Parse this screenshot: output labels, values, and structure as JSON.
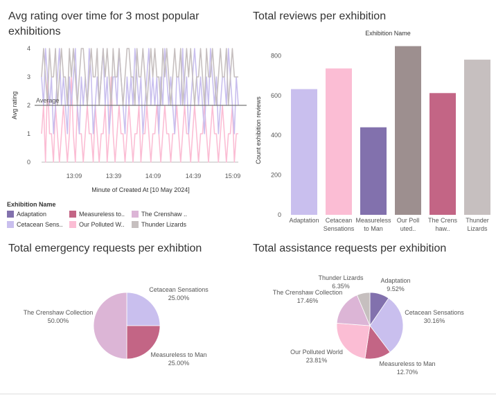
{
  "colors": {
    "Adaptation": "#c9bfee",
    "Cetacean Sensations": "#fbbdd4",
    "Measureless to Man": "#8271ad",
    "Our Polluted World": "#9d8f8f",
    "The Crenshaw Collection": "#c36585",
    "Thunder Lizards": "#c6bfbf",
    "pie_Adaptation": "#8271ad",
    "pie_Cetacean Sensations": "#c9bfee",
    "pie_Measureless to Man": "#c36585",
    "pie_Our Polluted World": "#fbbdd4",
    "pie_The Crenshaw Collection": "#dcb5d6",
    "pie_Thunder Lizards": "#c6bfbf"
  },
  "legend": {
    "title": "Exhibition Name",
    "items": [
      {
        "label": "Adaptation",
        "color": "#8271ad"
      },
      {
        "label": "Measureless to..",
        "color": "#c36585"
      },
      {
        "label": "The Crenshaw ..",
        "color": "#dcb5d6"
      },
      {
        "label": "Cetacean Sens..",
        "color": "#c9bfee"
      },
      {
        "label": "Our Polluted W..",
        "color": "#fbbdd4"
      },
      {
        "label": "Thunder Lizards",
        "color": "#c6bfbf"
      }
    ]
  },
  "chart_data": [
    {
      "id": "line",
      "type": "line",
      "title": "Avg rating over time for 3 most popular exhibitions",
      "xlabel": "Minute of Created At [10 May 2024]",
      "ylabel": "Avg rating",
      "ylim": [
        0,
        4
      ],
      "yticks": [
        "0",
        "1",
        "2",
        "3",
        "4"
      ],
      "xticks": [
        "13:09",
        "13:39",
        "14:09",
        "14:39",
        "15:09"
      ],
      "reference_line": {
        "label": "Average",
        "value": 2
      },
      "series": [
        {
          "name": "Cetacean Sensations",
          "color": "#fbbdd4",
          "values": [
            1,
            2,
            0,
            3,
            1,
            1,
            0,
            2,
            1,
            0,
            1,
            2,
            1,
            0,
            1,
            3,
            1,
            0,
            2,
            1,
            1,
            0,
            1,
            2,
            1,
            1,
            0,
            2,
            1,
            0,
            1,
            1,
            2,
            0,
            1,
            3,
            1,
            0,
            1,
            2,
            1,
            1,
            0,
            1,
            2,
            1,
            0,
            1,
            1,
            2,
            0,
            1,
            1,
            2,
            1,
            0,
            1,
            1,
            2,
            1,
            0,
            1,
            2,
            1,
            1,
            0,
            1,
            1,
            2,
            1,
            0,
            1,
            2,
            1,
            1,
            0,
            1,
            2,
            1,
            0,
            1,
            1,
            2,
            1,
            0,
            1,
            2,
            1,
            1,
            0,
            1,
            2,
            1,
            0,
            1,
            1,
            2,
            0,
            1,
            1
          ]
        },
        {
          "name": "Adaptation",
          "color": "#c9bfee",
          "values": [
            3,
            2,
            4,
            3,
            2,
            3,
            1,
            2,
            3,
            4,
            2,
            3,
            2,
            1,
            3,
            2,
            3,
            4,
            2,
            1,
            3,
            2,
            3,
            2,
            4,
            3,
            1,
            2,
            3,
            2,
            3,
            4,
            2,
            3,
            1,
            2,
            3,
            3,
            2,
            4,
            3,
            2,
            1,
            3,
            2,
            3,
            2,
            4,
            3,
            2,
            3,
            1,
            2,
            3,
            4,
            2,
            3,
            2,
            3,
            1,
            3,
            2,
            4,
            3,
            2,
            3,
            2,
            1,
            3,
            3,
            2,
            4,
            2,
            3,
            1,
            2,
            3,
            4,
            3,
            2,
            3,
            2,
            1,
            3,
            2,
            4,
            3,
            2,
            3,
            1,
            2,
            3,
            3,
            2,
            4,
            3,
            2,
            1,
            3,
            2
          ]
        },
        {
          "name": "Thunder Lizards",
          "color": "#c6bfbf",
          "values": [
            3,
            4,
            3,
            2,
            4,
            3,
            3,
            4,
            2,
            3,
            4,
            3,
            3,
            2,
            4,
            3,
            4,
            3,
            2,
            3,
            4,
            4,
            3,
            2,
            3,
            4,
            3,
            3,
            4,
            2,
            3,
            4,
            3,
            4,
            3,
            2,
            4,
            3,
            3,
            4,
            3,
            2,
            3,
            4,
            4,
            3,
            3,
            2,
            4,
            3,
            3,
            4,
            3,
            2,
            3,
            4,
            3,
            4,
            3,
            3,
            2,
            4,
            3,
            4,
            3,
            2,
            3,
            4,
            3,
            3,
            4,
            2,
            3,
            4,
            3,
            4,
            3,
            2,
            3,
            3,
            4,
            3,
            2,
            4,
            3,
            3,
            4,
            3,
            2,
            3,
            4,
            3,
            3,
            4,
            2,
            3,
            4,
            3,
            3,
            3
          ]
        }
      ]
    },
    {
      "id": "bar",
      "type": "bar",
      "title": "Total reviews per exhibition",
      "header": "Exhibition Name",
      "ylabel": "Count exhibition reviews",
      "ylim": [
        0,
        850
      ],
      "yticks": [
        "0",
        "200",
        "400",
        "600",
        "800"
      ],
      "categories": [
        "Adaptation",
        "Cetacean Sensations",
        "Measureless to Man",
        "Our Polluted World",
        "The Crenshaw Collection",
        "Thunder Lizards"
      ],
      "tick_labels": [
        [
          "Adaptation"
        ],
        [
          "Cetacean",
          "Sensations"
        ],
        [
          "Measureless",
          "to Man"
        ],
        [
          "Our Poll",
          "uted.."
        ],
        [
          "The Crens",
          "haw.."
        ],
        [
          "Thunder",
          "Lizards"
        ]
      ],
      "values": [
        632,
        736,
        440,
        848,
        612,
        780
      ]
    },
    {
      "id": "pie1",
      "type": "pie",
      "title": "Total emergency requests per exhibtion",
      "slices": [
        {
          "label": "Cetacean Sensations",
          "value": 25.0,
          "pct": "25.00%",
          "key": "pie_Cetacean Sensations"
        },
        {
          "label": "Measureless to Man",
          "value": 25.0,
          "pct": "25.00%",
          "key": "pie_Measureless to Man"
        },
        {
          "label": "The Crenshaw Collection",
          "value": 50.0,
          "pct": "50.00%",
          "key": "pie_The Crenshaw Collection"
        }
      ]
    },
    {
      "id": "pie2",
      "type": "pie",
      "title": "Total assistance requests per exhibition",
      "slices": [
        {
          "label": "Adaptation",
          "value": 9.52,
          "pct": "9.52%",
          "key": "pie_Adaptation"
        },
        {
          "label": "Cetacean Sensations",
          "value": 30.16,
          "pct": "30.16%",
          "key": "pie_Cetacean Sensations"
        },
        {
          "label": "Measureless to Man",
          "value": 12.7,
          "pct": "12.70%",
          "key": "pie_Measureless to Man"
        },
        {
          "label": "Our Polluted World",
          "value": 23.81,
          "pct": "23.81%",
          "key": "pie_Our Polluted World"
        },
        {
          "label": "The Crenshaw Collection",
          "value": 17.46,
          "pct": "17.46%",
          "key": "pie_The Crenshaw Collection"
        },
        {
          "label": "Thunder Lizards",
          "value": 6.35,
          "pct": "6.35%",
          "key": "pie_Thunder Lizards"
        }
      ]
    }
  ]
}
